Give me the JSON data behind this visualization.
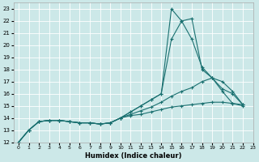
{
  "xlabel": "Humidex (Indice chaleur)",
  "background_color": "#cce8e8",
  "grid_color": "#ffffff",
  "line_color": "#1a7070",
  "xlim": [
    -0.5,
    23
  ],
  "ylim": [
    12,
    23.5
  ],
  "xticks": [
    0,
    1,
    2,
    3,
    4,
    5,
    6,
    7,
    8,
    9,
    10,
    11,
    12,
    13,
    14,
    15,
    16,
    17,
    18,
    19,
    20,
    21,
    22,
    23
  ],
  "yticks": [
    12,
    13,
    14,
    15,
    16,
    17,
    18,
    19,
    20,
    21,
    22,
    23
  ],
  "lines": [
    {
      "x": [
        0,
        1,
        2,
        3,
        4,
        5,
        6,
        7,
        8,
        9,
        10,
        11,
        12,
        13,
        14,
        15,
        16,
        17,
        18,
        19,
        20,
        21,
        22
      ],
      "y": [
        12,
        13,
        13.7,
        13.8,
        13.8,
        13.7,
        13.6,
        13.6,
        13.5,
        13.6,
        14.0,
        14.5,
        15.0,
        15.5,
        16.0,
        23.0,
        22.0,
        22.2,
        18.0,
        17.3,
        16.2,
        15.2,
        15.1
      ]
    },
    {
      "x": [
        0,
        1,
        2,
        3,
        4,
        5,
        6,
        7,
        8,
        9,
        10,
        11,
        12,
        13,
        14,
        15,
        16,
        17,
        18,
        19,
        20,
        21,
        22
      ],
      "y": [
        12,
        13,
        13.7,
        13.8,
        13.8,
        13.7,
        13.6,
        13.6,
        13.5,
        13.6,
        14.0,
        14.5,
        15.0,
        15.5,
        16.0,
        20.5,
        22.0,
        20.5,
        18.2,
        17.3,
        16.4,
        16.0,
        15.1
      ]
    },
    {
      "x": [
        0,
        1,
        2,
        3,
        4,
        5,
        6,
        7,
        8,
        9,
        10,
        11,
        12,
        13,
        14,
        15,
        16,
        17,
        18,
        19,
        20,
        21,
        22
      ],
      "y": [
        12,
        13,
        13.7,
        13.8,
        13.8,
        13.7,
        13.6,
        13.6,
        13.5,
        13.6,
        14.0,
        14.3,
        14.6,
        14.9,
        15.3,
        15.8,
        16.2,
        16.5,
        17.0,
        17.3,
        17.0,
        16.2,
        15.1
      ]
    },
    {
      "x": [
        0,
        1,
        2,
        3,
        4,
        5,
        6,
        7,
        8,
        9,
        10,
        11,
        12,
        13,
        14,
        15,
        16,
        17,
        18,
        19,
        20,
        21,
        22
      ],
      "y": [
        12,
        13,
        13.7,
        13.8,
        13.8,
        13.7,
        13.6,
        13.6,
        13.5,
        13.6,
        14.0,
        14.2,
        14.3,
        14.5,
        14.7,
        14.9,
        15.0,
        15.1,
        15.2,
        15.3,
        15.3,
        15.2,
        15.0
      ]
    }
  ]
}
